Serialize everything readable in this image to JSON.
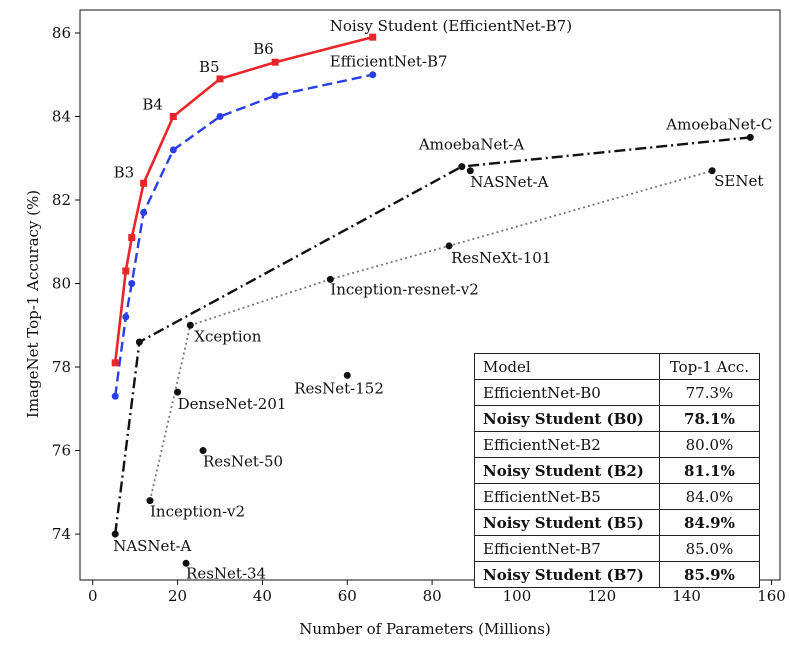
{
  "chart_data": {
    "type": "line",
    "xlabel": "Number of Parameters (Millions)",
    "ylabel": "ImageNet Top-1 Accuracy (%)",
    "xlim": [
      -3,
      162
    ],
    "ylim": [
      72.9,
      86.55
    ],
    "xticks": [
      0,
      20,
      40,
      60,
      80,
      100,
      120,
      140,
      160
    ],
    "yticks": [
      74,
      76,
      78,
      80,
      82,
      84,
      86
    ],
    "grid": false,
    "series": [
      {
        "name": "Noisy Student (EfficientNet-B7)",
        "color": "#e8262a",
        "style": "solid",
        "marker": "square",
        "x": [
          5.3,
          7.8,
          9.2,
          12,
          19,
          30,
          43,
          66
        ],
        "y": [
          78.1,
          80.3,
          81.1,
          82.4,
          84.0,
          84.9,
          85.3,
          85.9
        ]
      },
      {
        "name": "EfficientNet-B7",
        "color": "#2a3ee8",
        "style": "dashed",
        "marker": "circle",
        "x": [
          5.3,
          7.8,
          9.2,
          12,
          19,
          30,
          43,
          66
        ],
        "y": [
          77.3,
          79.2,
          80.0,
          81.7,
          83.2,
          84.0,
          84.5,
          85.0
        ]
      },
      {
        "color": "#111111",
        "style": "dashdot",
        "marker": "circle",
        "x": [
          5.3,
          11,
          87,
          155
        ],
        "y": [
          74.0,
          78.6,
          82.8,
          83.5
        ]
      },
      {
        "color": "#777777",
        "style": "dotted",
        "marker": "circle",
        "x": [
          13.5,
          23,
          56,
          84,
          146
        ],
        "y": [
          74.8,
          79.0,
          80.1,
          80.9,
          82.7
        ]
      }
    ],
    "standalone_points": [
      {
        "x": 20,
        "y": 77.4
      },
      {
        "x": 26,
        "y": 76.0
      },
      {
        "x": 60,
        "y": 77.8
      },
      {
        "x": 22,
        "y": 73.3
      },
      {
        "x": 89,
        "y": 82.7
      }
    ],
    "annotations": [
      {
        "text": "Noisy Student (EfficientNet-B7)",
        "x": 66,
        "y": 85.9,
        "dx": -43,
        "dy": -6,
        "anchor": "start"
      },
      {
        "text": "EfficientNet-B7",
        "x": 66,
        "y": 85.0,
        "dx": -43,
        "dy": -8,
        "anchor": "start"
      },
      {
        "text": "B3",
        "x": 12,
        "y": 82.4,
        "dx": -30,
        "dy": -6,
        "anchor": "start"
      },
      {
        "text": "B4",
        "x": 19,
        "y": 84.0,
        "dx": -31,
        "dy": -7,
        "anchor": "start"
      },
      {
        "text": "B5",
        "x": 30,
        "y": 84.9,
        "dx": -21,
        "dy": -7,
        "anchor": "start"
      },
      {
        "text": "B6",
        "x": 43,
        "y": 85.3,
        "dx": -22,
        "dy": -8,
        "anchor": "start"
      },
      {
        "text": "AmoebaNet-A",
        "x": 87,
        "y": 82.8,
        "dx": -43,
        "dy": -17,
        "anchor": "start"
      },
      {
        "text": "NASNet-A",
        "x": 89,
        "y": 82.7,
        "dx": 0,
        "dy": 16,
        "anchor": "start"
      },
      {
        "text": "AmoebaNet-C",
        "x": 155,
        "y": 83.5,
        "dx": -84,
        "dy": -8,
        "anchor": "start"
      },
      {
        "text": "SENet",
        "x": 146,
        "y": 82.7,
        "dx": 2,
        "dy": 15,
        "anchor": "start"
      },
      {
        "text": "ResNeXt-101",
        "x": 84,
        "y": 80.9,
        "dx": 2,
        "dy": 17,
        "anchor": "start"
      },
      {
        "text": "Inception-resnet-v2",
        "x": 56,
        "y": 80.1,
        "dx": 0,
        "dy": 15,
        "anchor": "start"
      },
      {
        "text": "Xception",
        "x": 23,
        "y": 79.0,
        "dx": 4,
        "dy": 16,
        "anchor": "start"
      },
      {
        "text": "DenseNet-201",
        "x": 20,
        "y": 77.4,
        "dx": 0,
        "dy": 17,
        "anchor": "start"
      },
      {
        "text": "ResNet-152",
        "x": 60,
        "y": 77.8,
        "dx": -53,
        "dy": 18,
        "anchor": "start"
      },
      {
        "text": "ResNet-50",
        "x": 26,
        "y": 76.0,
        "dx": 0,
        "dy": 16,
        "anchor": "start"
      },
      {
        "text": "Inception-v2",
        "x": 13.5,
        "y": 74.8,
        "dx": 0,
        "dy": 16,
        "anchor": "start"
      },
      {
        "text": "NASNet-A",
        "x": 5.3,
        "y": 74.0,
        "dx": -2,
        "dy": 17,
        "anchor": "start"
      },
      {
        "text": "ResNet-34",
        "x": 22,
        "y": 73.3,
        "dx": 0,
        "dy": 15,
        "anchor": "start"
      }
    ]
  },
  "table": {
    "headers": [
      "Model",
      "Top-1 Acc."
    ],
    "rows": [
      {
        "model": "EfficientNet-B0",
        "acc": "77.3%",
        "bold": false
      },
      {
        "model": "Noisy Student (B0)",
        "acc": "78.1%",
        "bold": true
      },
      {
        "model": "EfficientNet-B2",
        "acc": "80.0%",
        "bold": false
      },
      {
        "model": "Noisy Student (B2)",
        "acc": "81.1%",
        "bold": true
      },
      {
        "model": "EfficientNet-B5",
        "acc": "84.0%",
        "bold": false
      },
      {
        "model": "Noisy Student (B5)",
        "acc": "84.9%",
        "bold": true
      },
      {
        "model": "EfficientNet-B7",
        "acc": "85.0%",
        "bold": false
      },
      {
        "model": "Noisy Student (B7)",
        "acc": "85.9%",
        "bold": true
      }
    ]
  }
}
